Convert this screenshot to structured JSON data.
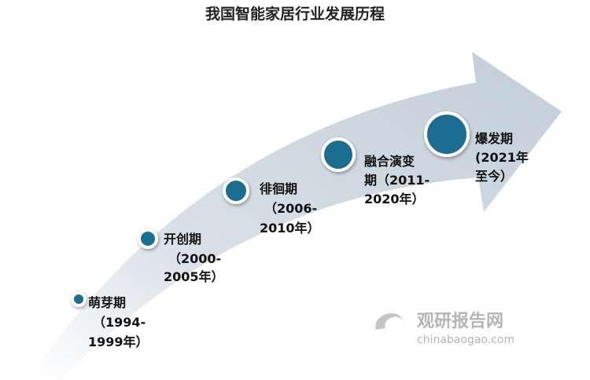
{
  "title": "我国智能家居行业发展历程",
  "stages": [
    {
      "lines": [
        "萌芽期",
        "（1994-",
        "1999年）"
      ]
    },
    {
      "lines": [
        "开创期",
        "（2000-",
        "2005年）"
      ]
    },
    {
      "lines": [
        "徘徊期",
        "（2006-",
        "2010年）"
      ]
    },
    {
      "lines": [
        "融合演变",
        "期（2011-",
        "2020年）"
      ]
    },
    {
      "lines": [
        "爆发期",
        "(2021年",
        "至今）"
      ]
    }
  ],
  "watermark": {
    "name": "观研报告网",
    "url": "chinabaogao.com"
  }
}
